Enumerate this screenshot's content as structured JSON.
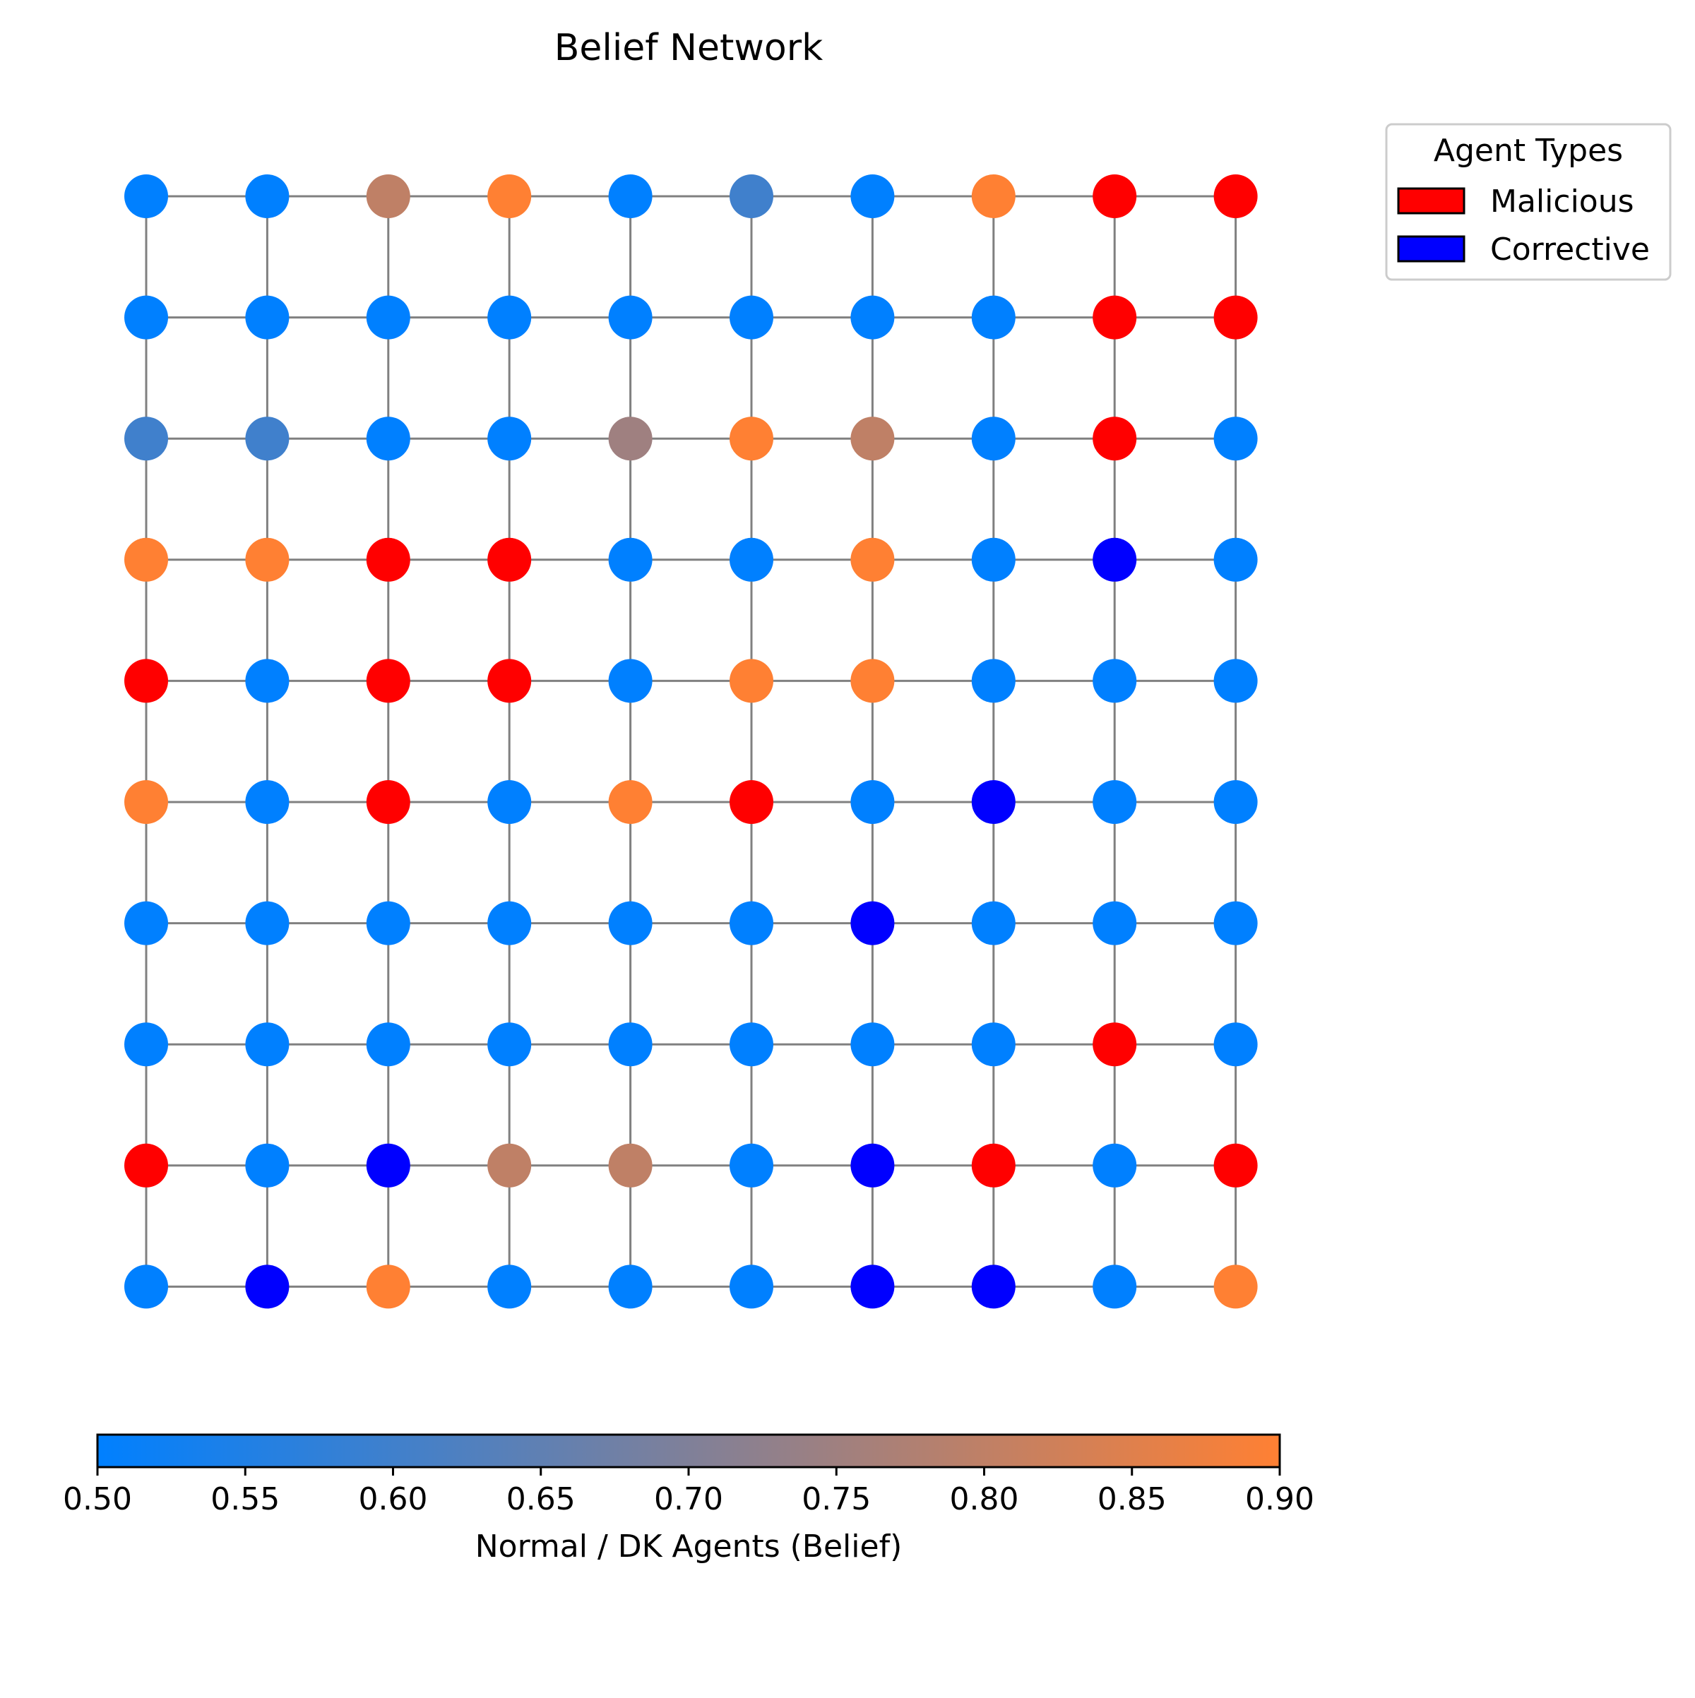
{
  "chart_data": {
    "type": "network-grid",
    "title": "Belief Network",
    "grid": {
      "rows": 10,
      "cols": 10
    },
    "edge_color": "#808080",
    "legend": {
      "title": "Agent Types",
      "placement": "outside-top-right",
      "items": [
        {
          "label": "Malicious",
          "color": "#ff0000"
        },
        {
          "label": "Corrective",
          "color": "#0000ff"
        }
      ]
    },
    "colorbar": {
      "label": "Normal / DK Agents (Belief)",
      "range": [
        0.5,
        0.9
      ],
      "ticks": [
        "0.50",
        "0.55",
        "0.60",
        "0.65",
        "0.70",
        "0.75",
        "0.80",
        "0.85",
        "0.90"
      ],
      "color_low": "#0080ff",
      "color_high": "#ff8033",
      "orientation": "horizontal"
    },
    "node_grid": [
      [
        0.5,
        0.5,
        0.8,
        0.9,
        0.5,
        0.6,
        0.5,
        0.9,
        "M",
        "M"
      ],
      [
        0.5,
        0.5,
        0.5,
        0.5,
        0.5,
        0.5,
        0.5,
        0.5,
        "M",
        "M"
      ],
      [
        0.6,
        0.6,
        0.5,
        0.5,
        0.75,
        0.9,
        0.8,
        0.5,
        "M",
        0.5
      ],
      [
        0.9,
        0.9,
        "M",
        "M",
        0.5,
        0.5,
        0.9,
        0.5,
        "C",
        0.5
      ],
      [
        "M",
        0.5,
        "M",
        "M",
        0.5,
        0.9,
        0.9,
        0.5,
        0.5,
        0.5
      ],
      [
        0.9,
        0.5,
        "M",
        0.5,
        0.9,
        "M",
        0.5,
        "C",
        0.5,
        0.5
      ],
      [
        0.5,
        0.5,
        0.5,
        0.5,
        0.5,
        0.5,
        "C",
        0.5,
        0.5,
        0.5
      ],
      [
        0.5,
        0.5,
        0.5,
        0.5,
        0.5,
        0.5,
        0.5,
        0.5,
        "M",
        0.5
      ],
      [
        "M",
        0.5,
        "C",
        0.8,
        0.8,
        0.5,
        "C",
        "M",
        0.5,
        "M"
      ],
      [
        0.5,
        "C",
        0.9,
        0.5,
        0.5,
        0.5,
        "C",
        "C",
        0.5,
        0.9
      ]
    ]
  }
}
